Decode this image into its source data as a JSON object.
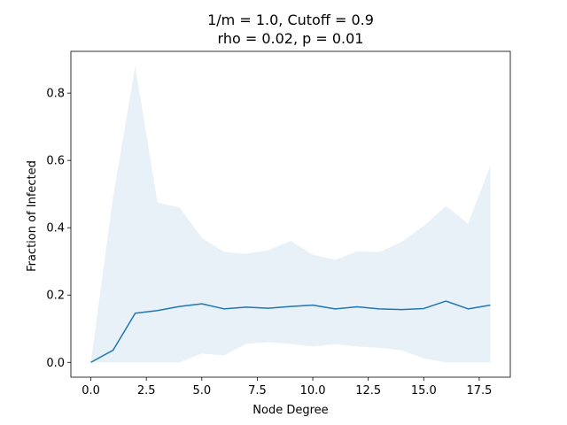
{
  "chart_data": {
    "type": "line",
    "title_line1": "1/m = 1.0, Cutoff = 0.9",
    "title_line2": "rho = 0.02, p = 0.01",
    "xlabel": "Node Degree",
    "ylabel": "Fraction of Infected",
    "xlim": [
      -0.9,
      18.9
    ],
    "ylim": [
      -0.044,
      0.924
    ],
    "x_ticks": [
      0.0,
      2.5,
      5.0,
      7.5,
      10.0,
      12.5,
      15.0,
      17.5
    ],
    "x_tick_labels": [
      "0.0",
      "2.5",
      "5.0",
      "7.5",
      "10.0",
      "12.5",
      "15.0",
      "17.5"
    ],
    "y_ticks": [
      0.0,
      0.2,
      0.4,
      0.6,
      0.8
    ],
    "y_tick_labels": [
      "0.0",
      "0.2",
      "0.4",
      "0.6",
      "0.8"
    ],
    "grid": false,
    "colors": {
      "line": "#1f77b4",
      "band": "#1f77b4"
    },
    "x": [
      0,
      1,
      2,
      3,
      4,
      5,
      6,
      7,
      8,
      9,
      10,
      11,
      12,
      13,
      14,
      15,
      16,
      17,
      18
    ],
    "series": [
      {
        "values": [
          0.0,
          0.036,
          0.146,
          0.154,
          0.166,
          0.174,
          0.159,
          0.164,
          0.161,
          0.166,
          0.17,
          0.159,
          0.165,
          0.159,
          0.157,
          0.16,
          0.182,
          0.159,
          0.17
        ]
      }
    ],
    "band": {
      "upper": [
        0.0,
        0.49,
        0.88,
        0.475,
        0.46,
        0.37,
        0.328,
        0.323,
        0.333,
        0.361,
        0.32,
        0.305,
        0.33,
        0.328,
        0.358,
        0.405,
        0.465,
        0.412,
        0.585
      ],
      "lower": [
        0.0,
        0.0,
        0.0,
        0.0,
        0.0,
        0.026,
        0.021,
        0.055,
        0.06,
        0.055,
        0.047,
        0.054,
        0.047,
        0.043,
        0.036,
        0.012,
        0.0,
        0.0,
        0.0
      ]
    }
  }
}
